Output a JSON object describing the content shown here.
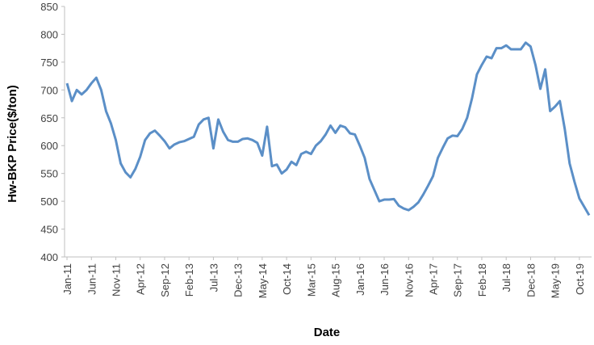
{
  "chart_data": {
    "type": "line",
    "x_label": "Date",
    "y_label": "Hw-BKP Price($/ton)",
    "categories": [
      "Jan-11",
      null,
      null,
      null,
      null,
      "Jun-11",
      null,
      null,
      null,
      null,
      "Nov-11",
      null,
      null,
      null,
      null,
      "Apr-12",
      null,
      null,
      null,
      null,
      "Sep-12",
      null,
      null,
      null,
      null,
      "Feb-13",
      null,
      null,
      null,
      null,
      "Jul-13",
      null,
      null,
      null,
      null,
      "Dec-13",
      null,
      null,
      null,
      null,
      "May-14",
      null,
      null,
      null,
      null,
      "Oct-14",
      null,
      null,
      null,
      null,
      "Mar-15",
      null,
      null,
      null,
      null,
      "Aug-15",
      null,
      null,
      null,
      null,
      "Jan-16",
      null,
      null,
      null,
      null,
      "Jun-16",
      null,
      null,
      null,
      null,
      "Nov-16",
      null,
      null,
      null,
      null,
      "Apr-17",
      null,
      null,
      null,
      null,
      "Sep-17",
      null,
      null,
      null,
      null,
      "Feb-18",
      null,
      null,
      null,
      null,
      "Jul-18",
      null,
      null,
      null,
      null,
      "Dec-18",
      null,
      null,
      null,
      null,
      "May-19",
      null,
      null,
      null,
      null,
      "Oct-19",
      null,
      null
    ],
    "values": [
      712,
      680,
      700,
      692,
      700,
      712,
      722,
      700,
      662,
      640,
      610,
      568,
      552,
      543,
      558,
      580,
      610,
      622,
      627,
      618,
      608,
      595,
      602,
      606,
      608,
      612,
      616,
      638,
      647,
      650,
      595,
      647,
      625,
      610,
      607,
      607,
      612,
      613,
      610,
      605,
      582,
      634,
      563,
      566,
      550,
      557,
      571,
      565,
      585,
      589,
      585,
      600,
      608,
      620,
      636,
      623,
      636,
      633,
      622,
      620,
      600,
      578,
      540,
      520,
      500,
      503,
      503,
      504,
      492,
      487,
      484,
      490,
      498,
      512,
      528,
      545,
      578,
      596,
      613,
      618,
      617,
      630,
      650,
      685,
      728,
      745,
      760,
      757,
      775,
      775,
      780,
      773,
      773,
      773,
      785,
      778,
      745,
      702,
      737,
      662,
      670,
      680,
      630,
      568,
      535,
      505,
      490,
      475
    ],
    "color": "#5b8fc7",
    "ylim": [
      400,
      850
    ],
    "yticks": [
      400,
      450,
      500,
      550,
      600,
      650,
      700,
      750,
      800,
      850
    ],
    "grid": false
  }
}
